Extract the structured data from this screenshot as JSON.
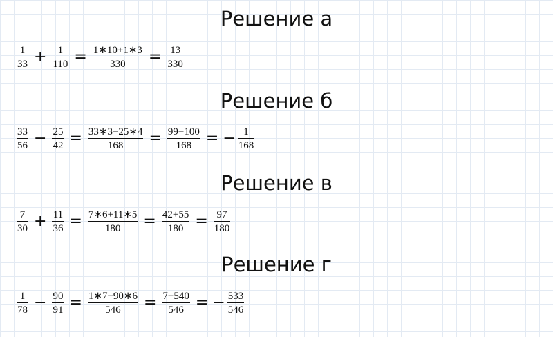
{
  "sections": [
    {
      "title": "Решение а",
      "f1": {
        "num": "1",
        "den": "33"
      },
      "op1": "+",
      "f2": {
        "num": "1",
        "den": "110"
      },
      "f3": {
        "num": "1∗10+1∗3",
        "den": "330"
      },
      "f4": {
        "num": "13",
        "den": "330"
      }
    },
    {
      "title": "Решение б",
      "f1": {
        "num": "33",
        "den": "56"
      },
      "op1": "−",
      "f2": {
        "num": "25",
        "den": "42"
      },
      "f3": {
        "num": "33∗3−25∗4",
        "den": "168"
      },
      "f4": {
        "num": "99−100",
        "den": "168"
      },
      "sign5": "−",
      "f5": {
        "num": "1",
        "den": "168"
      }
    },
    {
      "title": "Решение в",
      "f1": {
        "num": "7",
        "den": "30"
      },
      "op1": "+",
      "f2": {
        "num": "11",
        "den": "36"
      },
      "f3": {
        "num": "7∗6+11∗5",
        "den": "180"
      },
      "f4": {
        "num": "42+55",
        "den": "180"
      },
      "f5": {
        "num": "97",
        "den": "180"
      }
    },
    {
      "title": "Решение г",
      "f1": {
        "num": "1",
        "den": "78"
      },
      "op1": "−",
      "f2": {
        "num": "90",
        "den": "91"
      },
      "f3": {
        "num": "1∗7−90∗6",
        "den": "546"
      },
      "f4": {
        "num": "7−540",
        "den": "546"
      },
      "sign5": "−",
      "f5": {
        "num": "533",
        "den": "546"
      }
    }
  ],
  "equals": "="
}
